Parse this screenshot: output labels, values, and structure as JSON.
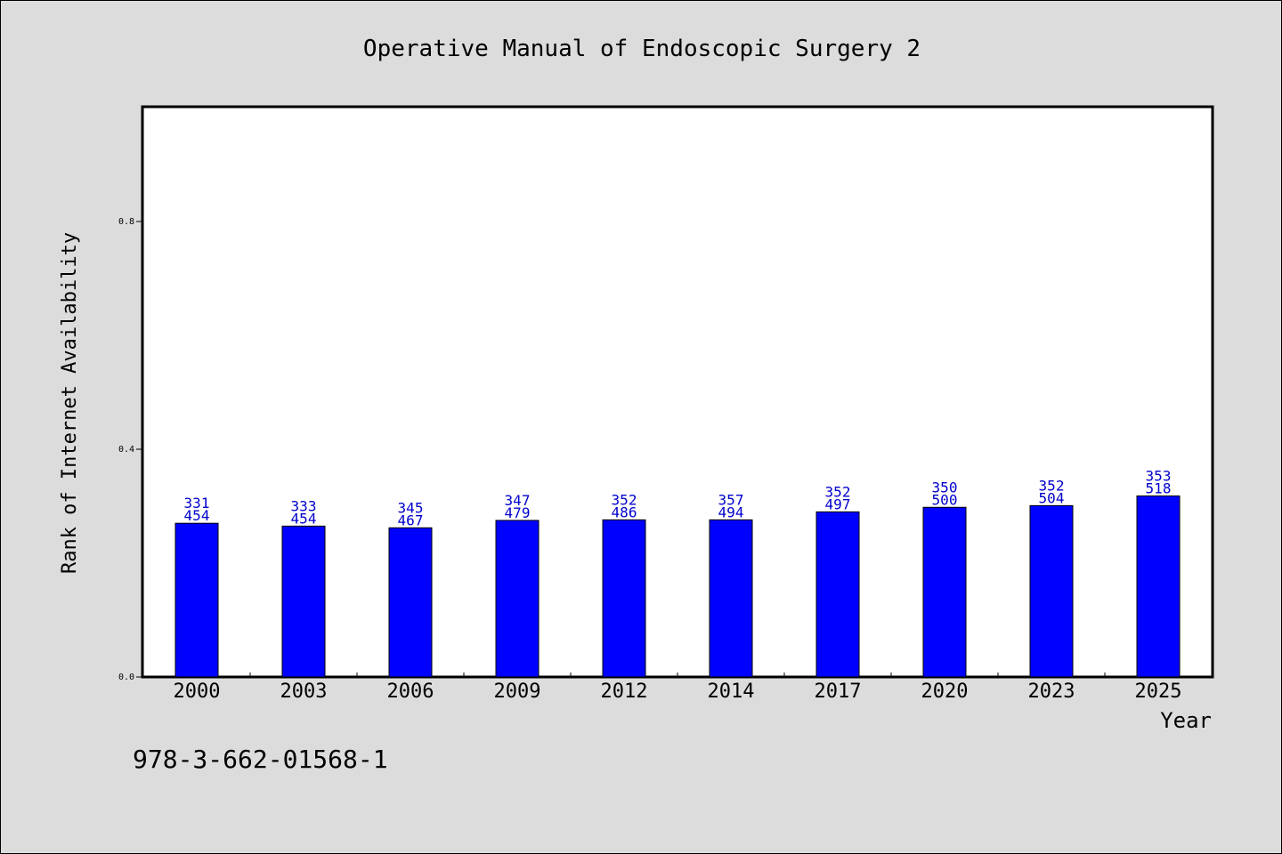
{
  "chart_data": {
    "type": "bar",
    "title": "Operative Manual of Endoscopic Surgery 2",
    "xlabel": "Year",
    "ylabel": "Rank of Internet Availability",
    "categories": [
      "2000",
      "2003",
      "2006",
      "2009",
      "2012",
      "2014",
      "2017",
      "2020",
      "2023",
      "2025"
    ],
    "values": [
      0.27,
      0.265,
      0.262,
      0.275,
      0.276,
      0.276,
      0.29,
      0.298,
      0.301,
      0.318
    ],
    "data_labels_top": [
      "331",
      "333",
      "345",
      "347",
      "352",
      "357",
      "352",
      "350",
      "352",
      "353"
    ],
    "data_labels_bottom": [
      "454",
      "454",
      "467",
      "479",
      "486",
      "494",
      "497",
      "500",
      "504",
      "518"
    ],
    "yticks": [
      "0.0",
      "0.4",
      "0.8"
    ],
    "ylim": [
      0,
      1.0
    ],
    "grid": false,
    "colors": {
      "bar": "#0000ff",
      "data_label": "#0000cc"
    }
  },
  "footer": {
    "isbn": "978-3-662-01568-1"
  }
}
